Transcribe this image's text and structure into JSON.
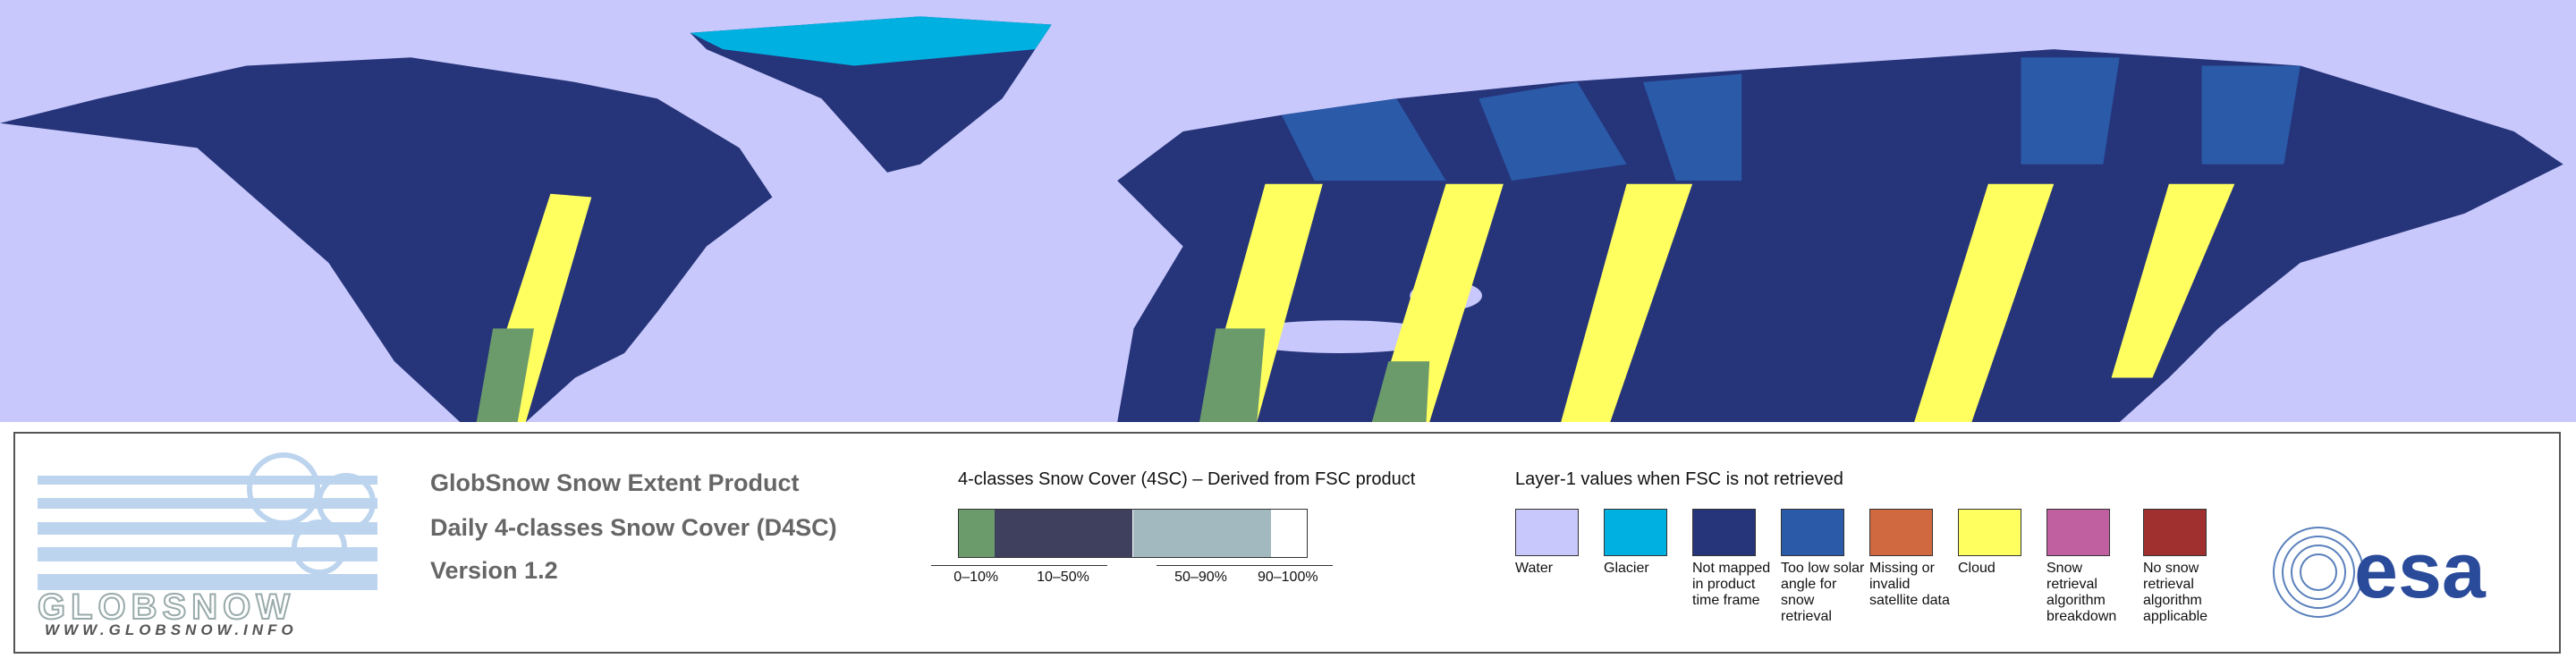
{
  "header": {
    "lines": [
      "GlobSnow Snow Extent Product",
      "Daily 4-classes Snow Cover (D4SC)",
      "Version 1.2"
    ]
  },
  "logo": {
    "name": "GLOBSNOW",
    "url": "WWW.GLOBSNOW.INFO"
  },
  "scale": {
    "title": "4-classes Snow Cover (4SC) – Derived from FSC product",
    "classes": [
      {
        "label": "0–10%",
        "color": "#6b9a6b"
      },
      {
        "label": "10–50%",
        "color": "#3f3f5e"
      },
      {
        "label": "50–90%",
        "color": "#a2b9c0"
      },
      {
        "label": "90–100%",
        "color": "#ffffff"
      }
    ]
  },
  "layer1": {
    "title": "Layer-1 values when FSC is not retrieved",
    "items": [
      {
        "label": "Water",
        "color": "#c8c8fc"
      },
      {
        "label": "Glacier",
        "color": "#00b0e0"
      },
      {
        "label": "Not mapped in product time frame",
        "color": "#26347a"
      },
      {
        "label": "Too low solar angle for snow retrieval",
        "color": "#2a5aa8"
      },
      {
        "label": "Missing or invalid satellite data",
        "color": "#d06840"
      },
      {
        "label": "Cloud",
        "color": "#ffff60"
      },
      {
        "label": "Snow retrieval algorithm breakdown",
        "color": "#c060a0"
      },
      {
        "label": "No snow retrieval algorithm applicable",
        "color": "#a03030"
      }
    ]
  },
  "esa": "esa"
}
